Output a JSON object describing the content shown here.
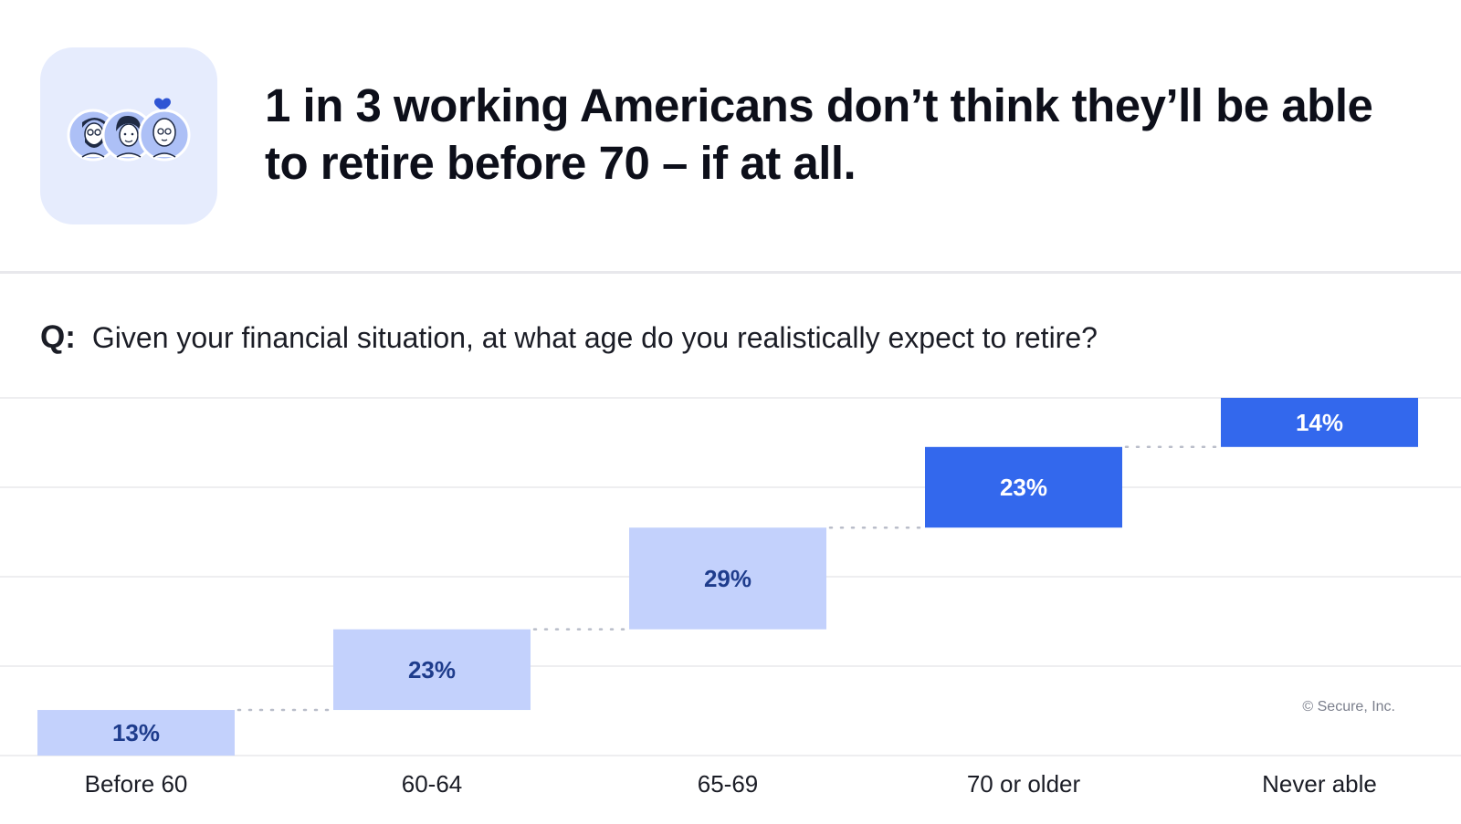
{
  "headline": "1 in 3 working Americans don’t think they’ll be able to retire before 70 – if at all.",
  "question": {
    "prefix": "Q:",
    "text": "Given your financial situation, at what age do you realistically expect to retire?"
  },
  "icon": "group-of-people-with-heart-icon",
  "source": "© Secure, Inc.",
  "colors": {
    "light_bar": "#c3d1fc",
    "dark_bar": "#3368ed",
    "light_label": "#1e3c8c",
    "dark_label": "#ffffff",
    "icon_tile": "#e6ecfd",
    "gridline": "#e8e8ec"
  },
  "chart_data": {
    "type": "bar",
    "subtype": "waterfall",
    "categories": [
      "Before 60",
      "60-64",
      "65-69",
      "70 or older",
      "Never able"
    ],
    "values": [
      13,
      23,
      29,
      23,
      14
    ],
    "data_labels": [
      "13%",
      "23%",
      "29%",
      "23%",
      "14%"
    ],
    "highlighted": [
      false,
      false,
      false,
      true,
      true
    ],
    "ylim": [
      0,
      102
    ],
    "grid": true,
    "connectors": "dotted"
  }
}
